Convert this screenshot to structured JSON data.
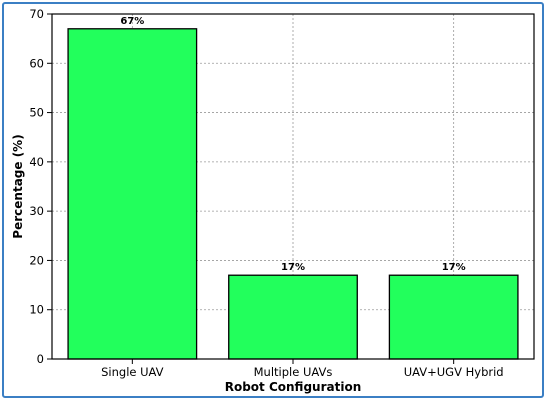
{
  "chart_data": {
    "type": "bar",
    "title": "",
    "xlabel": "Robot Configuration",
    "ylabel": "Percentage (%)",
    "categories": [
      "Single UAV",
      "Multiple UAVs",
      "UAV+UGV Hybrid"
    ],
    "values": [
      67,
      17,
      17
    ],
    "data_labels": [
      "67%",
      "17%",
      "17%"
    ],
    "ylim": [
      0,
      70
    ],
    "yticks": [
      0,
      10,
      20,
      30,
      40,
      50,
      60,
      70
    ],
    "ytick_labels": [
      "0",
      "10",
      "20",
      "30",
      "40",
      "50",
      "60",
      "70"
    ],
    "grid": true,
    "legend": "none"
  },
  "colors": {
    "bar_fill": "#22ff5c",
    "bar_edge": "#000000",
    "grid": "#9a9a9a",
    "frame_border": "#3b7fc4"
  }
}
